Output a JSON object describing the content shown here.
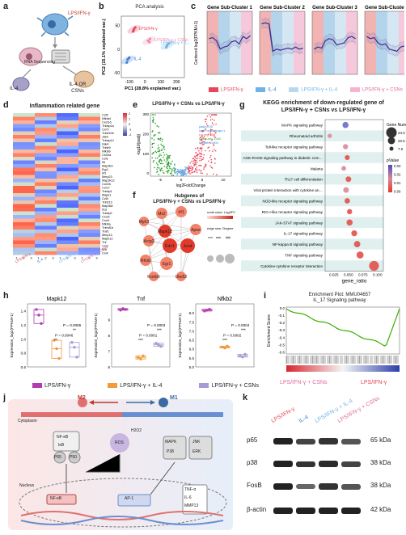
{
  "panel_a": {
    "letter": "a",
    "labels": {
      "lps": "LPS/IFN-γ",
      "rna": "RNA Sequencing",
      "il4": "IL-4",
      "il4_or": "IL-4 OR",
      "csns": "CSNs"
    }
  },
  "panel_b": {
    "letter": "b",
    "title": "PCA analysis",
    "legend": [
      "LPS/IFN-γ",
      "LPS/IFN-γ + CSNs",
      "LPS/IFN-γ + IL-4",
      "IL-4"
    ],
    "colors": {
      "lps": "#e8455a",
      "lps_csns": "#f08bb0",
      "lps_il4": "#6fb3e6",
      "il4": "#3c7fd0"
    }
  },
  "chart_data": [
    {
      "panel": "b",
      "type": "scatter",
      "title": "PCA analysis",
      "xlabel": "PC1 (28.8% explained var.)",
      "ylabel": "PC2 (15.1% explained var.)",
      "xticks": [
        "-100",
        "0",
        "100",
        "200"
      ],
      "yticks": [
        "-50",
        "0",
        "50"
      ],
      "series": [
        {
          "name": "LPS/IFN-γ",
          "x": [
            -70,
            -62,
            -75
          ],
          "y": [
            42,
            46,
            38
          ]
        },
        {
          "name": "LPS/IFN-γ + CSNs",
          "x": [
            20,
            32,
            28
          ],
          "y": [
            18,
            22,
            15
          ]
        },
        {
          "name": "LPS/IFN-γ + IL-4",
          "x": [
            140,
            150,
            135
          ],
          "y": [
            8,
            12,
            4
          ]
        },
        {
          "name": "IL-4",
          "x": [
            -110,
            -100,
            -115
          ],
          "y": [
            -22,
            -18,
            -28
          ]
        }
      ]
    },
    {
      "panel": "h",
      "type": "scatter",
      "title": "Mapk12",
      "ylabel": "Expression_log2(FPKM+1)",
      "ylim": [
        0.6,
        1.5
      ],
      "yticks": [
        "0.6",
        "0.8",
        "1.0",
        "1.2",
        "1.4"
      ],
      "groups": [
        "LPS/IFN-γ",
        "LPS/IFN-γ + IL-4",
        "LPS/IFN-γ + CSNs"
      ],
      "values": [
        [
          1.42,
          1.34,
          1.22
        ],
        [
          0.98,
          0.86,
          0.72
        ],
        [
          0.95,
          0.88,
          0.74
        ]
      ],
      "annotations": [
        "P = 0.0046",
        "P = 0.0065",
        "**",
        "**"
      ]
    },
    {
      "panel": "h",
      "type": "scatter",
      "title": "Tnf",
      "ylabel": "Expression_log2(FPKM+1)",
      "ylim": [
        6,
        10
      ],
      "yticks": [
        "6",
        "7",
        "8",
        "9"
      ],
      "groups": [
        "LPS/IFN-γ",
        "LPS/IFN-γ + IL-4",
        "LPS/IFN-γ + CSNs"
      ],
      "values": [
        [
          9.6,
          9.7,
          9.65
        ],
        [
          6.6,
          6.5,
          6.7
        ],
        [
          7.5,
          7.4,
          7.3
        ]
      ],
      "annotations": [
        "P = 0.0001",
        "P = 0.0003",
        "***",
        "***"
      ]
    },
    {
      "panel": "h",
      "type": "scatter",
      "title": "Nfkb2",
      "ylabel": "Expression_log2(FPKM+1)",
      "ylim": [
        5.0,
        8.5
      ],
      "yticks": [
        "5.0",
        "5.5",
        "6.0",
        "6.5",
        "7.0",
        "7.5",
        "8.0"
      ],
      "groups": [
        "LPS/IFN-γ",
        "LPS/IFN-γ + IL-4",
        "LPS/IFN-γ + CSNs"
      ],
      "values": [
        [
          8.1,
          8.15,
          8.2
        ],
        [
          6.1,
          6.05,
          6.15
        ],
        [
          5.6,
          5.55,
          5.7
        ]
      ],
      "annotations": [
        "P = 0.0002",
        "P = 0.0004",
        "***",
        "***"
      ]
    }
  ],
  "panel_c": {
    "letter": "c",
    "clusters": [
      "Gene Sub-Cluster 1",
      "Gene Sub-Cluster 2",
      "Gene Sub-Cluster 3",
      "Gene Sub-Cluster 4"
    ],
    "ylabel": "Centered log2(FPKM+1)",
    "legend": [
      "LPS/IFN-γ",
      "IL-4",
      "LPS/IFN-γ + IL-4",
      "LPS/IFN-γ + CSNs"
    ]
  },
  "panel_d": {
    "letter": "d",
    "title": "Inflammation related gene",
    "genes": [
      "Ccl5",
      "Nfkbid",
      "Cxcl16",
      "Tnfaip1a",
      "Cxl7r",
      "Tnfsf10b",
      "Jak2",
      "Tnfaip14",
      "Irak4",
      "Tnfsf9",
      "Nfkbib",
      "Csf2ra",
      "Csf1",
      "Il6",
      "Map3k3",
      "Egr1",
      "Irf1",
      "Mmp23",
      "Map3k12",
      "Ccl2rb",
      "Ccl17",
      "Tnfaip1",
      "Mapk1",
      "Ccl8",
      "Tnfsf13",
      "Map3k8",
      "Il1a",
      "Tnfaip2",
      "Cxcl3",
      "Cxcl1",
      "Nfkbia",
      "Tnfrsf1b",
      "Traf1",
      "Mmp13",
      "Mapk12",
      "Tnf",
      "Ccl3",
      "Il1b",
      "Ccl4"
    ],
    "scale": [
      "2",
      "1",
      "0",
      "-1",
      "-2"
    ],
    "col_labels": [
      "1",
      "2",
      "3",
      "1",
      "2",
      "3",
      "1",
      "2",
      "3",
      "1",
      "2",
      "3"
    ],
    "groups": [
      "LPS/IFN-γ",
      "IL-4",
      "LPS/IFN-γ + IL-4",
      "LPS/IFN-γ + CSNs"
    ]
  },
  "panel_e": {
    "letter": "e",
    "title": "LPS/IFN-γ + CSNs  vs LPS/IFN-γ",
    "xlabel": "log2FoldChange",
    "ylabel": "-log10(padj)",
    "yticks": [
      "300",
      "200",
      "100",
      "0"
    ],
    "xticks": [
      "-5",
      "0",
      "5",
      "10"
    ],
    "legend": [
      "padj<0.05",
      "log2FoldChange>1",
      "Up-reg: 758",
      "Down-reg: 1442",
      "No-diff: 10004"
    ]
  },
  "panel_f": {
    "letter": "f",
    "title_line1": "Hubgenes of",
    "title_line2": "LPS/IFN-γ + CSNs vs LPS/IFN-γ",
    "nodes": [
      "Mx2",
      "Irf1",
      "Myh3",
      "Mapk12",
      "Apoe",
      "Actg2",
      "Edn1",
      "Jund",
      "Rhob",
      "Egr1",
      "Kcmb6",
      "Ube52"
    ],
    "legend_title": "node color: Log2FC",
    "legend_size": "edge size: Degree"
  },
  "panel_g": {
    "letter": "g",
    "title_line1": "KEGG enrichment of  down-regulated gene of",
    "title_line2": "LPS/IFN-γ + CSNs  vs LPS/IFN-γ",
    "xlabel": "gene_ratio",
    "xticks": [
      "0.025",
      "0.050",
      "0.075",
      "0.100"
    ],
    "pathways": [
      "MAPK signaling pathway",
      "Rheumatoid arthritis",
      "Toll-like receptor signaling pathway",
      "AGE-RAGE signaling pathway in diabetic complications",
      "Malaria",
      "Th17 cell differentiation",
      "Viral protein interaction with cytokine and cytokine receptor",
      "NOD-like receptor signaling pathway",
      "RIG-I-like receptor signaling pathway",
      "JAK-STAT signaling pathway",
      "IL-17 signaling pathway",
      "NF-kappa B signaling pathway",
      "TNF signaling pathway",
      "Cytokine-cytokine receptor interaction"
    ],
    "gene_number_title": "Gene Number",
    "gene_number": [
      "34.0",
      "20.5",
      "7.0"
    ],
    "pvalue_title": "pValue",
    "pvalue_ticks": [
      "0.03",
      "0.02",
      "0.01",
      "0.00"
    ]
  },
  "panel_h": {
    "letter": "h",
    "legend": [
      "LPS/IFN-γ",
      "LPS/IFN-γ + IL-4",
      "LPS/IFN-γ + CSNs"
    ]
  },
  "panel_i": {
    "letter": "i",
    "title_line1": "Enrichment Plot: MMU04657",
    "title_line2": "IL_17 Signaling pathway",
    "ylabel": "Enrichment Score",
    "yticks": [
      "0.0",
      "-0.1",
      "-0.2",
      "-0.3",
      "-0.4",
      "-0.5",
      "-0.6"
    ],
    "left_label": "LPS/IFN-γ + CSNs",
    "right_label": "LPS/IFN-γ"
  },
  "panel_j": {
    "letter": "j",
    "m2": "M2",
    "m1": "M1",
    "cytoplasm": "Cytoplasm",
    "nucleus": "Nucleus",
    "ros": "ROS",
    "h2o2": "H2O2",
    "nfkb": "NF-κB",
    "ikb": "IκB",
    "p65": "P65",
    "p50": "P50",
    "mapk": "MAPK",
    "p38": "P38",
    "jnk": "JNK",
    "erk": "ERK",
    "nfkb_n": "NF-κB",
    "ap1": "AP-1",
    "tnfa": "TNF-α",
    "il6": "IL-6",
    "mmp13": "MMP13"
  },
  "panel_k": {
    "letter": "k",
    "lanes": [
      "LPS/IFN-γ",
      "IL-4",
      "LPS/IFN-γ + IL-4",
      "LPS/IFN-γ + CSNs"
    ],
    "proteins": [
      "p65",
      "p38",
      "FosB",
      "β-actin"
    ],
    "sizes": [
      "65 kDa",
      "38 kDa",
      "38 kDa",
      "42 kDa"
    ]
  }
}
